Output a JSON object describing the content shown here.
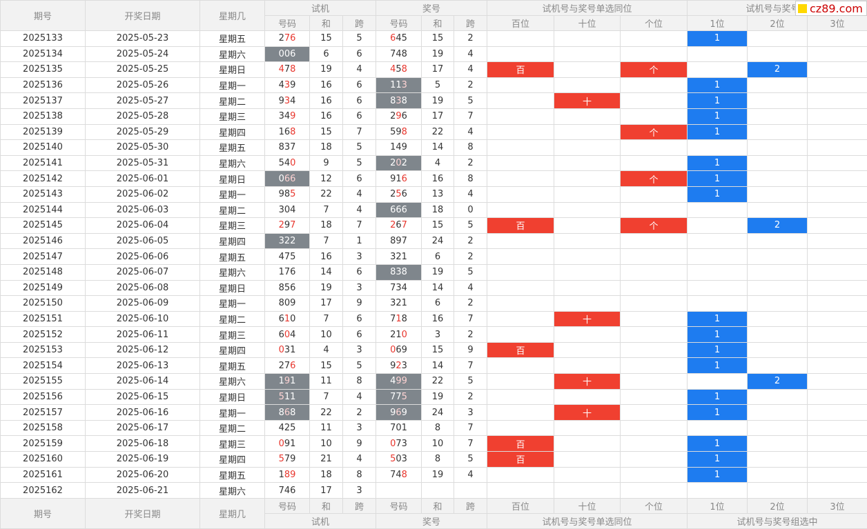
{
  "watermark": "cz89.com",
  "header": {
    "qihao": "期号",
    "date": "开奖日期",
    "weekday": "星期几",
    "trial": "试机",
    "draw": "奖号",
    "single": "试机号与奖号单选同位",
    "group": "试机号与奖号组选中",
    "group_top": "试机号与奖号组",
    "code": "号码",
    "sum": "和",
    "span": "跨",
    "bai": "百位",
    "shi": "十位",
    "ge": "个位",
    "p1": "1位",
    "p2": "2位",
    "p3": "3位"
  },
  "rows": [
    {
      "id": "2025133",
      "date": "2025-05-23",
      "wk": "星期五",
      "t": [
        "2",
        "7",
        "6"
      ],
      "tr": [
        false,
        true,
        true
      ],
      "tg": false,
      "ts": "15",
      "tk": "5",
      "d": [
        "6",
        "4",
        "5"
      ],
      "dr": [
        true,
        false,
        false
      ],
      "dg": false,
      "ds": "15",
      "dk": "2",
      "b": "",
      "s": "",
      "g": "",
      "p": "1"
    },
    {
      "id": "2025134",
      "date": "2025-05-24",
      "wk": "星期六",
      "t": [
        "0",
        "0",
        "6"
      ],
      "tr": [
        false,
        false,
        false
      ],
      "tg": true,
      "ts": "6",
      "tk": "6",
      "d": [
        "7",
        "4",
        "8"
      ],
      "dr": [
        false,
        false,
        false
      ],
      "dg": false,
      "ds": "19",
      "dk": "4",
      "b": "",
      "s": "",
      "g": "",
      "p": ""
    },
    {
      "id": "2025135",
      "date": "2025-05-25",
      "wk": "星期日",
      "t": [
        "4",
        "7",
        "8"
      ],
      "tr": [
        true,
        false,
        true
      ],
      "tg": false,
      "ts": "19",
      "tk": "4",
      "d": [
        "4",
        "5",
        "8"
      ],
      "dr": [
        true,
        false,
        true
      ],
      "dg": false,
      "ds": "17",
      "dk": "4",
      "b": "百",
      "s": "",
      "g": "个",
      "p": "2"
    },
    {
      "id": "2025136",
      "date": "2025-05-26",
      "wk": "星期一",
      "t": [
        "4",
        "3",
        "9"
      ],
      "tr": [
        false,
        true,
        false
      ],
      "tg": false,
      "ts": "16",
      "tk": "6",
      "d": [
        "1",
        "1",
        "3"
      ],
      "dr": [
        false,
        false,
        true
      ],
      "dg": true,
      "ds": "5",
      "dk": "2",
      "b": "",
      "s": "",
      "g": "",
      "p": "1"
    },
    {
      "id": "2025137",
      "date": "2025-05-27",
      "wk": "星期二",
      "t": [
        "9",
        "3",
        "4"
      ],
      "tr": [
        false,
        true,
        false
      ],
      "tg": false,
      "ts": "16",
      "tk": "6",
      "d": [
        "8",
        "3",
        "8"
      ],
      "dr": [
        false,
        true,
        false
      ],
      "dg": true,
      "ds": "19",
      "dk": "5",
      "b": "",
      "s": "十",
      "g": "",
      "p": "1"
    },
    {
      "id": "2025138",
      "date": "2025-05-28",
      "wk": "星期三",
      "t": [
        "3",
        "4",
        "9"
      ],
      "tr": [
        false,
        false,
        true
      ],
      "tg": false,
      "ts": "16",
      "tk": "6",
      "d": [
        "2",
        "9",
        "6"
      ],
      "dr": [
        false,
        true,
        false
      ],
      "dg": false,
      "ds": "17",
      "dk": "7",
      "b": "",
      "s": "",
      "g": "",
      "p": "1"
    },
    {
      "id": "2025139",
      "date": "2025-05-29",
      "wk": "星期四",
      "t": [
        "1",
        "6",
        "8"
      ],
      "tr": [
        false,
        false,
        true
      ],
      "tg": false,
      "ts": "15",
      "tk": "7",
      "d": [
        "5",
        "9",
        "8"
      ],
      "dr": [
        false,
        false,
        true
      ],
      "dg": false,
      "ds": "22",
      "dk": "4",
      "b": "",
      "s": "",
      "g": "个",
      "p": "1"
    },
    {
      "id": "2025140",
      "date": "2025-05-30",
      "wk": "星期五",
      "t": [
        "8",
        "3",
        "7"
      ],
      "tr": [
        false,
        false,
        false
      ],
      "tg": false,
      "ts": "18",
      "tk": "5",
      "d": [
        "1",
        "4",
        "9"
      ],
      "dr": [
        false,
        false,
        false
      ],
      "dg": false,
      "ds": "14",
      "dk": "8",
      "b": "",
      "s": "",
      "g": "",
      "p": ""
    },
    {
      "id": "2025141",
      "date": "2025-05-31",
      "wk": "星期六",
      "t": [
        "5",
        "4",
        "0"
      ],
      "tr": [
        false,
        false,
        true
      ],
      "tg": false,
      "ts": "9",
      "tk": "5",
      "d": [
        "2",
        "0",
        "2"
      ],
      "dr": [
        false,
        true,
        false
      ],
      "dg": true,
      "ds": "4",
      "dk": "2",
      "b": "",
      "s": "",
      "g": "",
      "p": "1"
    },
    {
      "id": "2025142",
      "date": "2025-06-01",
      "wk": "星期日",
      "t": [
        "0",
        "6",
        "6"
      ],
      "tr": [
        false,
        true,
        true
      ],
      "tg": true,
      "ts": "12",
      "tk": "6",
      "d": [
        "9",
        "1",
        "6"
      ],
      "dr": [
        false,
        false,
        true
      ],
      "dg": false,
      "ds": "16",
      "dk": "8",
      "b": "",
      "s": "",
      "g": "个",
      "p": "1"
    },
    {
      "id": "2025143",
      "date": "2025-06-02",
      "wk": "星期一",
      "t": [
        "9",
        "8",
        "5"
      ],
      "tr": [
        false,
        false,
        true
      ],
      "tg": false,
      "ts": "22",
      "tk": "4",
      "d": [
        "2",
        "5",
        "6"
      ],
      "dr": [
        false,
        true,
        false
      ],
      "dg": false,
      "ds": "13",
      "dk": "4",
      "b": "",
      "s": "",
      "g": "",
      "p": "1"
    },
    {
      "id": "2025144",
      "date": "2025-06-03",
      "wk": "星期二",
      "t": [
        "3",
        "0",
        "4"
      ],
      "tr": [
        false,
        false,
        false
      ],
      "tg": false,
      "ts": "7",
      "tk": "4",
      "d": [
        "6",
        "6",
        "6"
      ],
      "dr": [
        false,
        false,
        false
      ],
      "dg": true,
      "ds": "18",
      "dk": "0",
      "b": "",
      "s": "",
      "g": "",
      "p": ""
    },
    {
      "id": "2025145",
      "date": "2025-06-04",
      "wk": "星期三",
      "t": [
        "2",
        "9",
        "7"
      ],
      "tr": [
        true,
        false,
        true
      ],
      "tg": false,
      "ts": "18",
      "tk": "7",
      "d": [
        "2",
        "6",
        "7"
      ],
      "dr": [
        true,
        false,
        true
      ],
      "dg": false,
      "ds": "15",
      "dk": "5",
      "b": "百",
      "s": "",
      "g": "个",
      "p": "2"
    },
    {
      "id": "2025146",
      "date": "2025-06-05",
      "wk": "星期四",
      "t": [
        "3",
        "2",
        "2"
      ],
      "tr": [
        false,
        false,
        false
      ],
      "tg": true,
      "ts": "7",
      "tk": "1",
      "d": [
        "8",
        "9",
        "7"
      ],
      "dr": [
        false,
        false,
        false
      ],
      "dg": false,
      "ds": "24",
      "dk": "2",
      "b": "",
      "s": "",
      "g": "",
      "p": ""
    },
    {
      "id": "2025147",
      "date": "2025-06-06",
      "wk": "星期五",
      "t": [
        "4",
        "7",
        "5"
      ],
      "tr": [
        false,
        false,
        false
      ],
      "tg": false,
      "ts": "16",
      "tk": "3",
      "d": [
        "3",
        "2",
        "1"
      ],
      "dr": [
        false,
        false,
        false
      ],
      "dg": false,
      "ds": "6",
      "dk": "2",
      "b": "",
      "s": "",
      "g": "",
      "p": ""
    },
    {
      "id": "2025148",
      "date": "2025-06-07",
      "wk": "星期六",
      "t": [
        "1",
        "7",
        "6"
      ],
      "tr": [
        false,
        false,
        false
      ],
      "tg": false,
      "ts": "14",
      "tk": "6",
      "d": [
        "8",
        "3",
        "8"
      ],
      "dr": [
        false,
        false,
        false
      ],
      "dg": true,
      "ds": "19",
      "dk": "5",
      "b": "",
      "s": "",
      "g": "",
      "p": ""
    },
    {
      "id": "2025149",
      "date": "2025-06-08",
      "wk": "星期日",
      "t": [
        "8",
        "5",
        "6"
      ],
      "tr": [
        false,
        false,
        false
      ],
      "tg": false,
      "ts": "19",
      "tk": "3",
      "d": [
        "7",
        "3",
        "4"
      ],
      "dr": [
        false,
        false,
        false
      ],
      "dg": false,
      "ds": "14",
      "dk": "4",
      "b": "",
      "s": "",
      "g": "",
      "p": ""
    },
    {
      "id": "2025150",
      "date": "2025-06-09",
      "wk": "星期一",
      "t": [
        "8",
        "0",
        "9"
      ],
      "tr": [
        false,
        false,
        false
      ],
      "tg": false,
      "ts": "17",
      "tk": "9",
      "d": [
        "3",
        "2",
        "1"
      ],
      "dr": [
        false,
        false,
        false
      ],
      "dg": false,
      "ds": "6",
      "dk": "2",
      "b": "",
      "s": "",
      "g": "",
      "p": ""
    },
    {
      "id": "2025151",
      "date": "2025-06-10",
      "wk": "星期二",
      "t": [
        "6",
        "1",
        "0"
      ],
      "tr": [
        false,
        true,
        false
      ],
      "tg": false,
      "ts": "7",
      "tk": "6",
      "d": [
        "7",
        "1",
        "8"
      ],
      "dr": [
        false,
        true,
        false
      ],
      "dg": false,
      "ds": "16",
      "dk": "7",
      "b": "",
      "s": "十",
      "g": "",
      "p": "1"
    },
    {
      "id": "2025152",
      "date": "2025-06-11",
      "wk": "星期三",
      "t": [
        "6",
        "0",
        "4"
      ],
      "tr": [
        false,
        true,
        false
      ],
      "tg": false,
      "ts": "10",
      "tk": "6",
      "d": [
        "2",
        "1",
        "0"
      ],
      "dr": [
        false,
        false,
        true
      ],
      "dg": false,
      "ds": "3",
      "dk": "2",
      "b": "",
      "s": "",
      "g": "",
      "p": "1"
    },
    {
      "id": "2025153",
      "date": "2025-06-12",
      "wk": "星期四",
      "t": [
        "0",
        "3",
        "1"
      ],
      "tr": [
        true,
        false,
        false
      ],
      "tg": false,
      "ts": "4",
      "tk": "3",
      "d": [
        "0",
        "6",
        "9"
      ],
      "dr": [
        true,
        false,
        false
      ],
      "dg": false,
      "ds": "15",
      "dk": "9",
      "b": "百",
      "s": "",
      "g": "",
      "p": "1"
    },
    {
      "id": "2025154",
      "date": "2025-06-13",
      "wk": "星期五",
      "t": [
        "2",
        "7",
        "6"
      ],
      "tr": [
        false,
        false,
        true
      ],
      "tg": false,
      "ts": "15",
      "tk": "5",
      "d": [
        "9",
        "2",
        "3"
      ],
      "dr": [
        false,
        true,
        false
      ],
      "dg": false,
      "ds": "14",
      "dk": "7",
      "b": "",
      "s": "",
      "g": "",
      "p": "1"
    },
    {
      "id": "2025155",
      "date": "2025-06-14",
      "wk": "星期六",
      "t": [
        "1",
        "9",
        "1"
      ],
      "tr": [
        false,
        true,
        false
      ],
      "tg": true,
      "ts": "11",
      "tk": "8",
      "d": [
        "4",
        "9",
        "9"
      ],
      "dr": [
        false,
        true,
        true
      ],
      "dg": true,
      "ds": "22",
      "dk": "5",
      "b": "",
      "s": "十",
      "g": "",
      "p": "2"
    },
    {
      "id": "2025156",
      "date": "2025-06-15",
      "wk": "星期日",
      "t": [
        "5",
        "1",
        "1"
      ],
      "tr": [
        true,
        false,
        false
      ],
      "tg": true,
      "ts": "7",
      "tk": "4",
      "d": [
        "7",
        "7",
        "5"
      ],
      "dr": [
        false,
        false,
        true
      ],
      "dg": true,
      "ds": "19",
      "dk": "2",
      "b": "",
      "s": "",
      "g": "",
      "p": "1"
    },
    {
      "id": "2025157",
      "date": "2025-06-16",
      "wk": "星期一",
      "t": [
        "8",
        "6",
        "8"
      ],
      "tr": [
        false,
        true,
        false
      ],
      "tg": true,
      "ts": "22",
      "tk": "2",
      "d": [
        "9",
        "6",
        "9"
      ],
      "dr": [
        false,
        true,
        false
      ],
      "dg": true,
      "ds": "24",
      "dk": "3",
      "b": "",
      "s": "十",
      "g": "",
      "p": "1"
    },
    {
      "id": "2025158",
      "date": "2025-06-17",
      "wk": "星期二",
      "t": [
        "4",
        "2",
        "5"
      ],
      "tr": [
        false,
        false,
        false
      ],
      "tg": false,
      "ts": "11",
      "tk": "3",
      "d": [
        "7",
        "0",
        "1"
      ],
      "dr": [
        false,
        false,
        false
      ],
      "dg": false,
      "ds": "8",
      "dk": "7",
      "b": "",
      "s": "",
      "g": "",
      "p": ""
    },
    {
      "id": "2025159",
      "date": "2025-06-18",
      "wk": "星期三",
      "t": [
        "0",
        "9",
        "1"
      ],
      "tr": [
        true,
        false,
        false
      ],
      "tg": false,
      "ts": "10",
      "tk": "9",
      "d": [
        "0",
        "7",
        "3"
      ],
      "dr": [
        true,
        false,
        false
      ],
      "dg": false,
      "ds": "10",
      "dk": "7",
      "b": "百",
      "s": "",
      "g": "",
      "p": "1"
    },
    {
      "id": "2025160",
      "date": "2025-06-19",
      "wk": "星期四",
      "t": [
        "5",
        "7",
        "9"
      ],
      "tr": [
        true,
        false,
        false
      ],
      "tg": false,
      "ts": "21",
      "tk": "4",
      "d": [
        "5",
        "0",
        "3"
      ],
      "dr": [
        true,
        false,
        false
      ],
      "dg": false,
      "ds": "8",
      "dk": "5",
      "b": "百",
      "s": "",
      "g": "",
      "p": "1"
    },
    {
      "id": "2025161",
      "date": "2025-06-20",
      "wk": "星期五",
      "t": [
        "1",
        "8",
        "9"
      ],
      "tr": [
        false,
        true,
        true
      ],
      "tg": false,
      "ts": "18",
      "tk": "8",
      "d": [
        "7",
        "4",
        "8"
      ],
      "dr": [
        false,
        false,
        true
      ],
      "dg": false,
      "ds": "19",
      "dk": "4",
      "b": "",
      "s": "",
      "g": "",
      "p": "1"
    },
    {
      "id": "2025162",
      "date": "2025-06-21",
      "wk": "星期六",
      "t": [
        "7",
        "4",
        "6"
      ],
      "tr": [
        false,
        false,
        false
      ],
      "tg": false,
      "ts": "17",
      "tk": "3",
      "d": [
        "",
        "",
        ""
      ],
      "dr": [
        false,
        false,
        false
      ],
      "dg": false,
      "ds": "",
      "dk": "",
      "b": "",
      "s": "",
      "g": "",
      "p": ""
    }
  ]
}
